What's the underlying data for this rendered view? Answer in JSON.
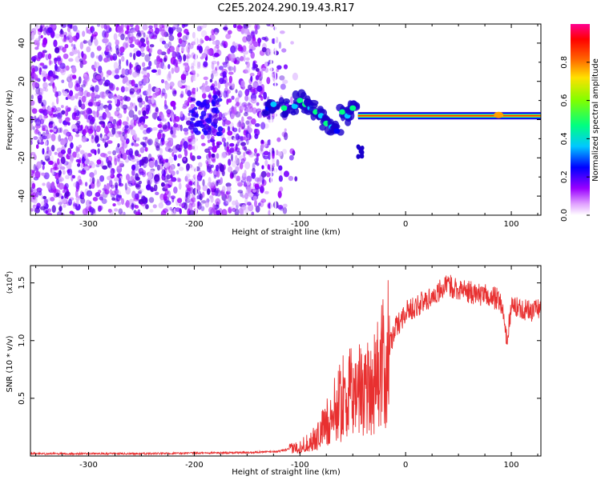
{
  "title": "C2E5.2024.290.19.43.R17",
  "colors": {
    "snr_line": "#e83030",
    "axis": "#000000",
    "background": "#ffffff"
  },
  "chart_data": [
    {
      "id": "spectrogram",
      "type": "heatmap",
      "xlabel": "Height of straight line (km)",
      "ylabel": "Frequency (Hz)",
      "xlim": [
        -355,
        128
      ],
      "ylim": [
        -50,
        50
      ],
      "xticks": [
        -300,
        -200,
        -100,
        0,
        100
      ],
      "xtick_labels": [
        "-300",
        "-200",
        "-100",
        "0",
        "100"
      ],
      "yticks": [
        -40,
        -20,
        0,
        20,
        40
      ],
      "ytick_labels": [
        "-40",
        "-20",
        "0",
        "20",
        "40"
      ],
      "colorbar": {
        "label": "Normalized spectral amplitude",
        "range": [
          0,
          1
        ],
        "ticks": [
          0,
          0.2,
          0.4,
          0.6,
          0.8
        ],
        "tick_labels": [
          "0.0",
          "0.2",
          "0.4",
          "0.6",
          "0.8"
        ],
        "colormap": [
          "#ffffff",
          "#9a00ff",
          "#0000ff",
          "#00c8ff",
          "#00ff60",
          "#c8ff00",
          "#ffc000",
          "#ff2000",
          "#ff0090"
        ]
      },
      "features": {
        "noise_region_x": [
          -355,
          -110
        ],
        "carrier_frequency_hz": 2,
        "carrier_x_start": -45,
        "carrier_x_end": 128
      }
    },
    {
      "id": "snr",
      "type": "line",
      "xlabel": "Height of straight line (km)",
      "ylabel": "SNR (10 * v/v)",
      "scale_label": "(x10",
      "scale_exponent": "4",
      "xlim": [
        -355,
        128
      ],
      "ylim": [
        0,
        1.65
      ],
      "xticks": [
        -300,
        -200,
        -100,
        0,
        100
      ],
      "xtick_labels": [
        "-300",
        "-200",
        "-100",
        "0",
        "100"
      ],
      "yticks": [
        0.5,
        1.0,
        1.5
      ],
      "ytick_labels": [
        "0.5",
        "1.0",
        "1.5"
      ],
      "series": [
        {
          "name": "SNR",
          "x": [
            -355,
            -300,
            -250,
            -200,
            -150,
            -120,
            -100,
            -85,
            -70,
            -60,
            -50,
            -40,
            -30,
            -20,
            -15,
            -10,
            0,
            10,
            20,
            30,
            40,
            50,
            60,
            70,
            80,
            90,
            96,
            100,
            110,
            120,
            128
          ],
          "y": [
            0.02,
            0.02,
            0.02,
            0.025,
            0.03,
            0.04,
            0.08,
            0.15,
            0.35,
            0.5,
            0.55,
            0.6,
            0.65,
            0.8,
            0.95,
            1.1,
            1.25,
            1.3,
            1.35,
            1.42,
            1.48,
            1.45,
            1.42,
            1.4,
            1.38,
            1.35,
            1.0,
            1.3,
            1.28,
            1.25,
            1.3
          ]
        }
      ]
    }
  ]
}
